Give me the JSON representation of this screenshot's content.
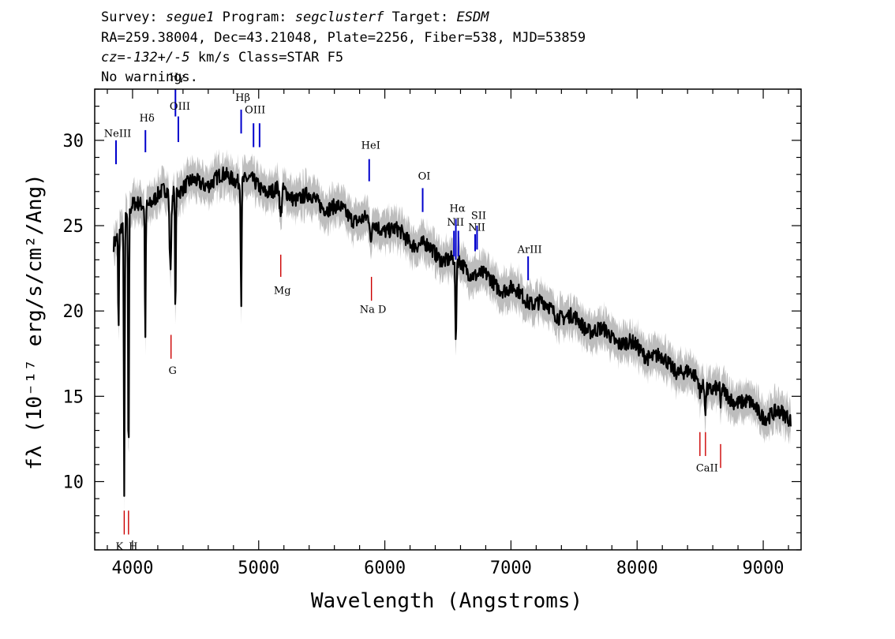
{
  "header": {
    "line1": {
      "survey_label": "Survey:",
      "survey": "segue1",
      "program_label": "Program:",
      "program": "segclusterf",
      "target_label": "Target:",
      "target": "ESDM"
    },
    "line2": "RA=259.38004, Dec=43.21048, Plate=2256, Fiber=538, MJD=53859",
    "line3": {
      "cz_label": "cz=",
      "cz": "-132+/-5",
      "rest": " km/s Class=STAR F5"
    },
    "line4": "No warnings."
  },
  "chart_data": {
    "type": "line",
    "xlabel": "Wavelength (Angstroms)",
    "ylabel": "fλ (10⁻¹⁷ erg/s/cm²/Ang)",
    "xlim": [
      3700,
      9300
    ],
    "ylim": [
      6,
      33
    ],
    "x_ticks": [
      4000,
      5000,
      6000,
      7000,
      8000,
      9000
    ],
    "x_minor_step": 200,
    "y_ticks": [
      10,
      15,
      20,
      25,
      30
    ],
    "y_minor_step": 1,
    "grid": false,
    "colors": {
      "flux": "#000000",
      "error_band": "#bdbdbd",
      "emission": "#0000cc",
      "absorption": "#cc0000"
    },
    "continuum": [
      [
        3850,
        24.0
      ],
      [
        3900,
        25.0
      ],
      [
        4000,
        26.0
      ],
      [
        4200,
        26.7
      ],
      [
        4400,
        27.3
      ],
      [
        4600,
        27.6
      ],
      [
        4800,
        27.9
      ],
      [
        5000,
        27.3
      ],
      [
        5200,
        26.9
      ],
      [
        5400,
        26.6
      ],
      [
        5600,
        26.0
      ],
      [
        5800,
        25.4
      ],
      [
        6000,
        24.9
      ],
      [
        6200,
        24.2
      ],
      [
        6400,
        23.4
      ],
      [
        6600,
        22.7
      ],
      [
        6800,
        21.9
      ],
      [
        7000,
        21.2
      ],
      [
        7200,
        20.5
      ],
      [
        7400,
        19.8
      ],
      [
        7600,
        19.1
      ],
      [
        7800,
        18.5
      ],
      [
        8000,
        17.8
      ],
      [
        8200,
        17.1
      ],
      [
        8400,
        16.3
      ],
      [
        8600,
        15.4
      ],
      [
        8800,
        14.8
      ],
      [
        9000,
        14.0
      ],
      [
        9220,
        13.8
      ]
    ],
    "absorption_features": [
      [
        3889,
        19.0,
        5
      ],
      [
        3934,
        9.0,
        5
      ],
      [
        3968,
        10.3,
        5
      ],
      [
        4101,
        18.6,
        5
      ],
      [
        4300,
        22.5,
        10
      ],
      [
        4340,
        20.0,
        5
      ],
      [
        4861,
        20.5,
        5
      ],
      [
        5175,
        25.2,
        10
      ],
      [
        5890,
        23.5,
        8
      ],
      [
        6563,
        17.5,
        6
      ],
      [
        8498,
        15.0,
        5
      ],
      [
        8542,
        14.2,
        5
      ],
      [
        8662,
        14.0,
        5
      ]
    ],
    "series": [
      {
        "name": "flux",
        "role": "line"
      },
      {
        "name": "error",
        "role": "band",
        "width": 0.8
      }
    ],
    "line_markers": [
      {
        "label": "NeIII",
        "wavelength": 3869,
        "kind": "emission",
        "y_top": 30.0,
        "y_bottom": 28.6,
        "label_y": 30.2
      },
      {
        "label": "Hδ",
        "wavelength": 4102,
        "kind": "emission",
        "y_top": 30.6,
        "y_bottom": 29.3,
        "label_y": 31.1
      },
      {
        "label": "Hγ",
        "wavelength": 4340,
        "kind": "emission",
        "y_top": 33.0,
        "y_bottom": 31.4,
        "label_y": 33.5
      },
      {
        "label": "OIII",
        "wavelength": 4363,
        "kind": "emission",
        "y_top": 31.4,
        "y_bottom": 29.9,
        "label_y": 31.8
      },
      {
        "label": "Hβ",
        "wavelength": 4861,
        "kind": "emission",
        "y_top": 31.8,
        "y_bottom": 30.4,
        "label_y": 32.3
      },
      {
        "label": "OIII",
        "wavelength": 4959,
        "kind": "emission",
        "y_top": 31.0,
        "y_bottom": 29.6,
        "label_y": 31.6
      },
      {
        "label": "",
        "wavelength": 5007,
        "kind": "emission",
        "y_top": 31.0,
        "y_bottom": 29.6,
        "label_y": 31.6
      },
      {
        "label": "HeI",
        "wavelength": 5876,
        "kind": "emission",
        "y_top": 28.9,
        "y_bottom": 27.6,
        "label_y": 29.5
      },
      {
        "label": "OI",
        "wavelength": 6300,
        "kind": "emission",
        "y_top": 27.2,
        "y_bottom": 25.8,
        "label_y": 27.7
      },
      {
        "label": "NII",
        "wavelength": 6548,
        "kind": "emission",
        "y_top": 24.7,
        "y_bottom": 23.2,
        "label_y": 25.0
      },
      {
        "label": "Hα",
        "wavelength": 6563,
        "kind": "emission",
        "y_top": 25.4,
        "y_bottom": 23.0,
        "label_y": 25.8
      },
      {
        "label": "",
        "wavelength": 6583,
        "kind": "emission",
        "y_top": 24.7,
        "y_bottom": 23.2,
        "label_y": 25.0
      },
      {
        "label": "NII",
        "wavelength": 6716,
        "kind": "emission",
        "y_top": 24.5,
        "y_bottom": 23.5,
        "label_y": 24.7
      },
      {
        "label": "SII",
        "wavelength": 6731,
        "kind": "emission",
        "y_top": 25.0,
        "y_bottom": 23.6,
        "label_y": 25.4
      },
      {
        "label": "ArIII",
        "wavelength": 7136,
        "kind": "emission",
        "y_top": 23.2,
        "y_bottom": 21.8,
        "label_y": 23.4
      },
      {
        "label": "G",
        "wavelength": 4305,
        "kind": "absorption",
        "y_top": 18.6,
        "y_bottom": 17.2,
        "label_y": 16.3
      },
      {
        "label": "Mg",
        "wavelength": 5175,
        "kind": "absorption",
        "y_top": 23.3,
        "y_bottom": 22.0,
        "label_y": 21.0
      },
      {
        "label": "Na D",
        "wavelength": 5894,
        "kind": "absorption",
        "y_top": 22.0,
        "y_bottom": 20.6,
        "label_y": 19.9
      },
      {
        "label": "K",
        "wavelength": 3934,
        "kind": "absorption",
        "y_top": 8.3,
        "y_bottom": 6.9,
        "label_y": 6.0
      },
      {
        "label": "H",
        "wavelength": 3968,
        "kind": "absorption",
        "y_top": 8.3,
        "y_bottom": 6.9,
        "label_y": 6.0
      },
      {
        "label": "CaII",
        "wavelength": 8542,
        "kind": "absorption",
        "y_top": 12.9,
        "y_bottom": 11.5,
        "label_y": 10.6
      },
      {
        "label": "",
        "wavelength": 8498,
        "kind": "absorption",
        "y_top": 12.9,
        "y_bottom": 11.5,
        "label_y": 10.6
      },
      {
        "label": "",
        "wavelength": 8662,
        "kind": "absorption",
        "y_top": 12.2,
        "y_bottom": 10.8,
        "label_y": 10.6
      }
    ]
  }
}
